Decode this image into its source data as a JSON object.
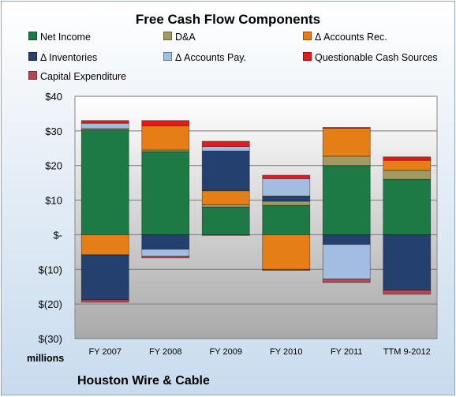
{
  "chart_data": {
    "type": "bar",
    "stacked": true,
    "title": "Free Cash Flow Components",
    "subtitle": "Houston Wire & Cable",
    "ylabel": "millions",
    "xlabel": "",
    "categories": [
      "FY 2007",
      "FY 2008",
      "FY 2009",
      "FY 2010",
      "FY 2011",
      "TTM 9-2012"
    ],
    "ylim": [
      -30,
      40
    ],
    "ytick_values": [
      40,
      30,
      20,
      10,
      0,
      -10,
      -20,
      -30
    ],
    "ytick_labels": [
      "$40",
      "$30",
      "$20",
      "$10",
      "$-",
      "$(10)",
      "$(20)",
      "$(30)"
    ],
    "grid": true,
    "legend_position": "top",
    "series": [
      {
        "name": "Net Income",
        "color": "#1e7a45",
        "values": [
          30.3,
          24.0,
          8.0,
          8.5,
          20.0,
          16.0
        ]
      },
      {
        "name": "D&A",
        "color": "#a29a60",
        "values": [
          0.4,
          0.5,
          0.7,
          1.2,
          2.7,
          2.6
        ]
      },
      {
        "name": "Δ Accounts Rec.",
        "color": "#e57e17",
        "values": [
          -5.8,
          7.0,
          4.0,
          -10.0,
          8.1,
          2.9
        ]
      },
      {
        "name": "Δ Inventories",
        "color": "#23406e",
        "values": [
          -13.0,
          -4.2,
          11.5,
          1.5,
          -2.8,
          -16.0
        ]
      },
      {
        "name": "Δ Accounts Pay.",
        "color": "#a3bde0",
        "values": [
          1.5,
          -2.0,
          1.3,
          5.0,
          -10.0,
          0.0
        ]
      },
      {
        "name": "Questionable Cash Sources",
        "color": "#e41a1c",
        "values": [
          0.8,
          1.5,
          1.5,
          1.0,
          0.2,
          1.0
        ]
      },
      {
        "name": "Capital Expenditure",
        "color": "#b04a55",
        "values": [
          -0.7,
          -0.5,
          -0.2,
          -0.3,
          -1.0,
          -1.2
        ]
      }
    ]
  }
}
